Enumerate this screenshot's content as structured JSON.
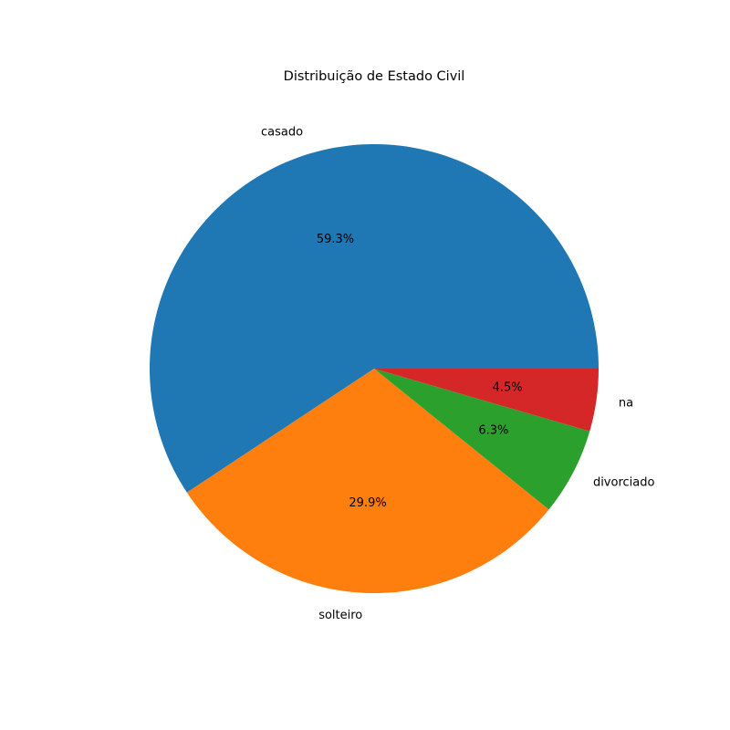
{
  "chart_data": {
    "type": "pie",
    "title": "Distribuição de Estado Civil",
    "categories": [
      "casado",
      "solteiro",
      "divorciado",
      "na"
    ],
    "values": [
      59.3,
      29.9,
      6.3,
      4.5
    ],
    "value_labels": [
      "59.3%",
      "29.9%",
      "6.3%",
      "4.5%"
    ],
    "colors": [
      "#1f77b4",
      "#ff7f0e",
      "#2ca02c",
      "#d62728"
    ],
    "start_angle_deg": 0,
    "direction": "counterclockwise"
  }
}
